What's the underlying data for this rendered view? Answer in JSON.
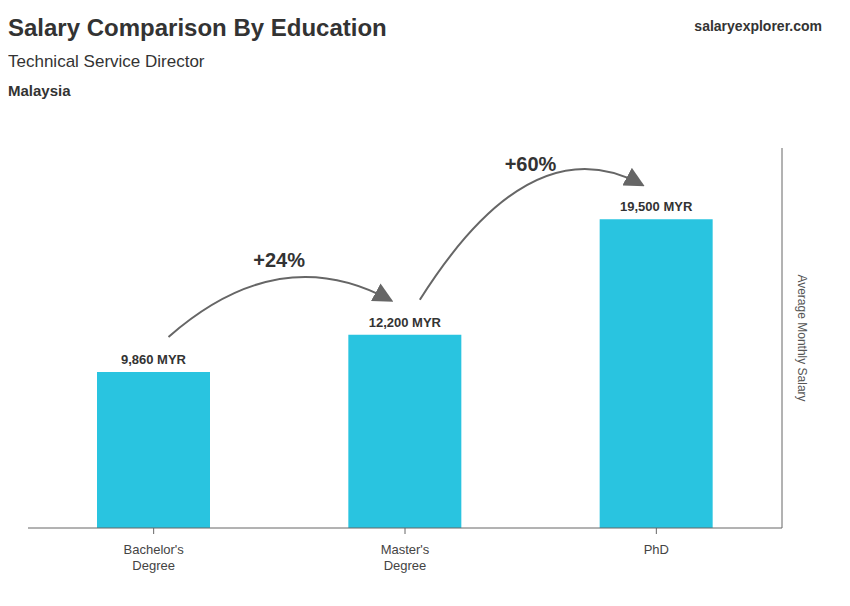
{
  "chart_data": {
    "type": "bar",
    "title": "Salary Comparison By Education",
    "subtitle": "Technical Service Director",
    "country": "Malaysia",
    "watermark": "salaryexplorer.com",
    "ylabel": "Average Monthly Salary",
    "categories": [
      "Bachelor's\nDegree",
      "Master's\nDegree",
      "PhD"
    ],
    "values": [
      9860,
      12200,
      19500
    ],
    "value_labels": [
      "9,860 MYR",
      "12,200 MYR",
      "19,500 MYR"
    ],
    "data_labels": true,
    "annotations": [
      "+24%",
      "+60%"
    ],
    "color": "#29c4e0",
    "ylim": [
      0,
      24000
    ],
    "tick_labels": "x",
    "grid": false
  }
}
